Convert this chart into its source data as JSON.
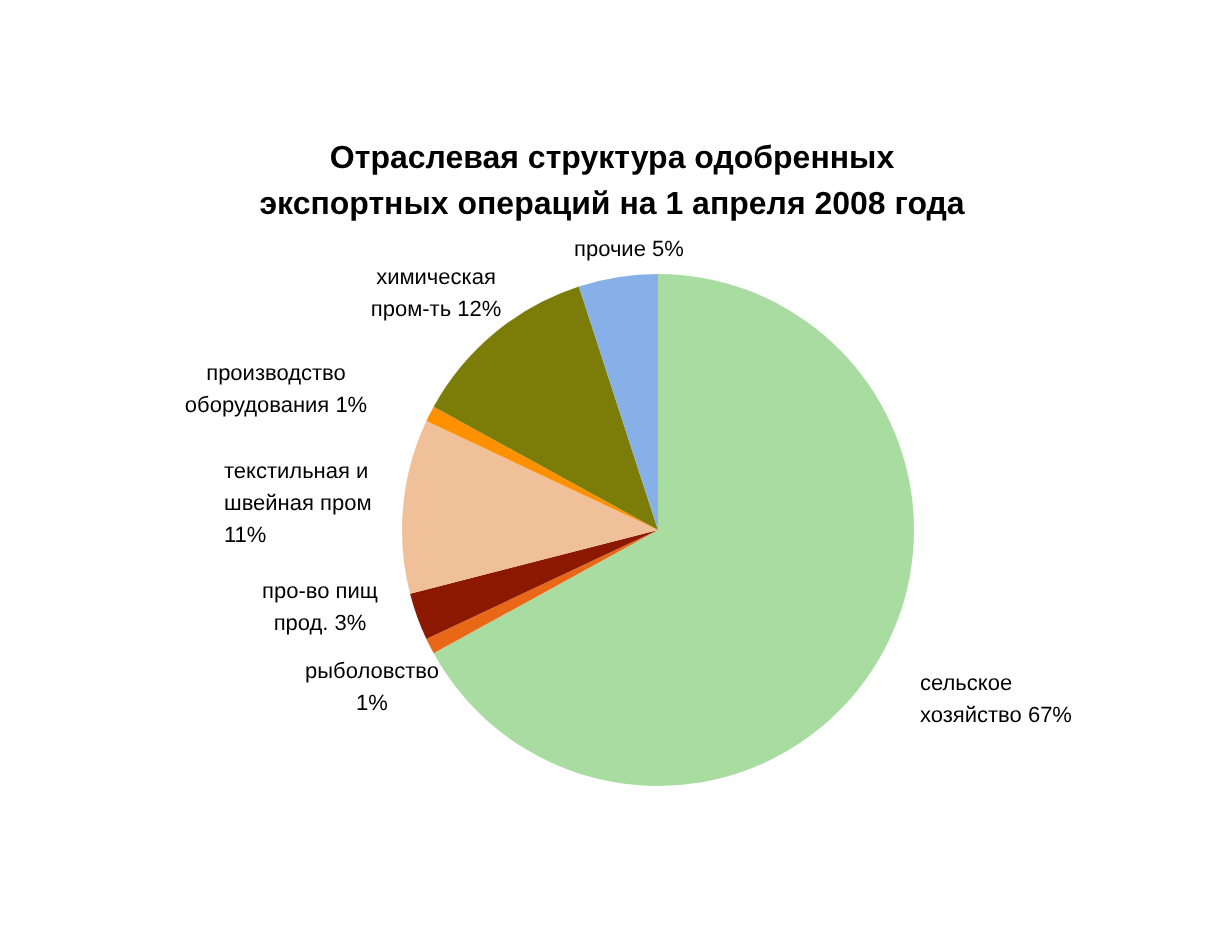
{
  "chart_data": {
    "type": "pie",
    "title": "Отраслевая структура одобренных экспортных операций на 1 апреля 2008 года",
    "categories": [
      "сельское хозяйство",
      "рыболовство",
      "про-во пищ прод.",
      "текстильная и швейная пром",
      "производство оборудования",
      "химическая пром-ть",
      "прочие"
    ],
    "values": [
      67,
      1,
      3,
      11,
      1,
      12,
      5
    ],
    "value_labels": [
      "67%",
      "1%",
      "3%",
      "11%",
      "1%",
      "12%",
      "5%"
    ],
    "colors": [
      "#a8dca0",
      "#e86818",
      "#8c1800",
      "#f0c098",
      "#ff9000",
      "#7c7c08",
      "#88b0e8"
    ]
  }
}
